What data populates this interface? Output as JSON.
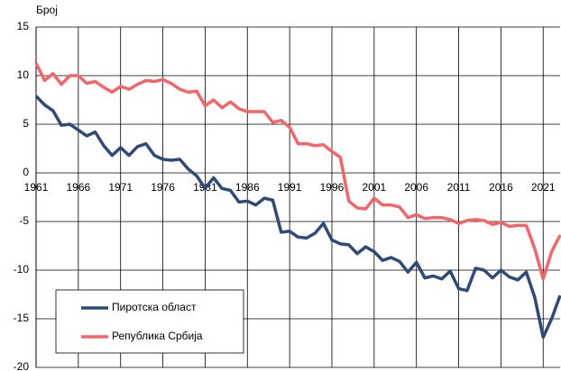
{
  "chart_data": {
    "type": "line",
    "y_label": "Број",
    "x": [
      1961,
      1962,
      1963,
      1964,
      1965,
      1966,
      1967,
      1968,
      1969,
      1970,
      1971,
      1972,
      1973,
      1974,
      1975,
      1976,
      1977,
      1978,
      1979,
      1980,
      1981,
      1982,
      1983,
      1984,
      1985,
      1986,
      1987,
      1988,
      1989,
      1990,
      1991,
      1992,
      1993,
      1994,
      1995,
      1996,
      1997,
      1998,
      1999,
      2000,
      2001,
      2002,
      2003,
      2004,
      2005,
      2006,
      2007,
      2008,
      2009,
      2010,
      2011,
      2012,
      2013,
      2014,
      2015,
      2016,
      2017,
      2018,
      2019,
      2020,
      2021,
      2022,
      2023
    ],
    "series": [
      {
        "name": "Пиротска област",
        "color": "#2e4a7a",
        "values": [
          7.9,
          7.0,
          6.4,
          4.9,
          5.0,
          4.4,
          3.8,
          4.2,
          2.8,
          1.8,
          2.6,
          1.8,
          2.7,
          3.0,
          1.8,
          1.4,
          1.3,
          1.4,
          0.4,
          -0.3,
          -1.6,
          -0.5,
          -1.6,
          -1.8,
          -3.0,
          -2.9,
          -3.3,
          -2.6,
          -2.8,
          -6.1,
          -6.0,
          -6.6,
          -6.7,
          -6.2,
          -5.2,
          -6.9,
          -7.3,
          -7.4,
          -8.3,
          -7.6,
          -8.1,
          -9.0,
          -8.7,
          -9.1,
          -10.2,
          -9.2,
          -10.8,
          -10.6,
          -10.9,
          -10.1,
          -11.9,
          -12.1,
          -9.8,
          -10.0,
          -10.8,
          -10.0,
          -10.7,
          -11.0,
          -10.2,
          -12.8,
          -16.9,
          -15.0,
          -12.6
        ]
      },
      {
        "name": "Република Србија",
        "color": "#f4656a",
        "values": [
          11.3,
          9.5,
          10.2,
          9.1,
          10.0,
          10.0,
          9.2,
          9.4,
          8.8,
          8.3,
          8.9,
          8.6,
          9.1,
          9.5,
          9.4,
          9.6,
          9.2,
          8.6,
          8.3,
          8.4,
          6.9,
          7.5,
          6.7,
          7.3,
          6.6,
          6.3,
          6.3,
          6.3,
          5.2,
          5.4,
          4.7,
          3.0,
          3.0,
          2.8,
          2.9,
          2.2,
          1.6,
          -2.9,
          -3.6,
          -3.7,
          -2.6,
          -3.3,
          -3.3,
          -3.5,
          -4.6,
          -4.3,
          -4.7,
          -4.6,
          -4.6,
          -4.8,
          -5.2,
          -4.9,
          -4.8,
          -4.9,
          -5.3,
          -5.1,
          -5.5,
          -5.4,
          -5.4,
          -7.8,
          -10.9,
          -8.1,
          -6.4
        ]
      }
    ],
    "xlim": [
      1961,
      2023
    ],
    "xticks": [
      1961,
      1966,
      1971,
      1976,
      1981,
      1986,
      1991,
      1996,
      2001,
      2006,
      2011,
      2016,
      2021
    ],
    "ylim": [
      -20,
      15
    ],
    "yticks": [
      -20,
      -15,
      -10,
      -5,
      0,
      5,
      10,
      15
    ],
    "grid": true,
    "legend": "lower left"
  }
}
